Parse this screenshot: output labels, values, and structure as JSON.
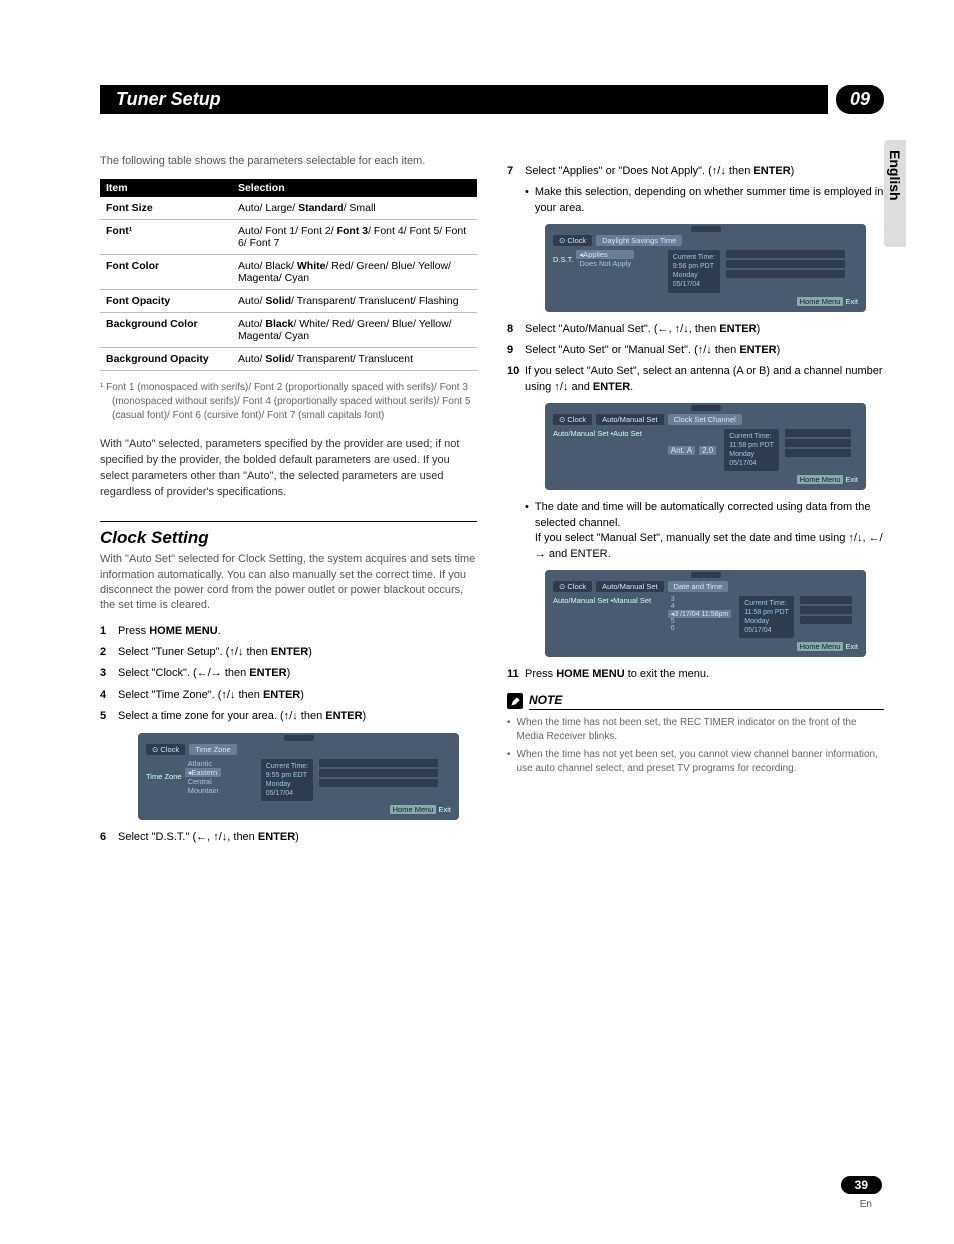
{
  "header": {
    "title": "Tuner Setup",
    "chapter": "09"
  },
  "side_tab": "English",
  "page_number": "39",
  "page_lang": "En",
  "left": {
    "intro": "The following table shows the parameters selectable for each item.",
    "table": {
      "headers": [
        "Item",
        "Selection"
      ],
      "rows": [
        {
          "item": "Font Size",
          "sel_pre": "Auto/ Large/ ",
          "sel_bold": "Standard",
          "sel_post": "/ Small"
        },
        {
          "item": "Font¹",
          "sel_pre": "Auto/ Font 1/ Font 2/ ",
          "sel_bold": "Font 3",
          "sel_post": "/ Font 4/ Font 5/ Font 6/ Font 7"
        },
        {
          "item": "Font Color",
          "sel_pre": "Auto/ Black/ ",
          "sel_bold": "White",
          "sel_post": "/ Red/ Green/ Blue/ Yellow/ Magenta/ Cyan"
        },
        {
          "item": "Font Opacity",
          "sel_pre": "Auto/ ",
          "sel_bold": "Solid",
          "sel_post": "/ Transparent/ Translucent/ Flashing"
        },
        {
          "item": "Background Color",
          "sel_pre": "Auto/ ",
          "sel_bold": "Black",
          "sel_post": "/ White/ Red/ Green/ Blue/ Yellow/ Magenta/ Cyan"
        },
        {
          "item": "Background Opacity",
          "sel_pre": "Auto/ ",
          "sel_bold": "Solid",
          "sel_post": "/ Transparent/ Translucent"
        }
      ]
    },
    "footnote": "¹  Font 1 (monospaced with serifs)/ Font 2 (proportionally spaced with serifs)/ Font 3 (monospaced without serifs)/ Font 4 (proportionally spaced without serifs)/ Font 5 (casual font)/ Font 6 (cursive font)/ Font 7 (small capitals font)",
    "para1": "With \"Auto\" selected, parameters specified by the provider are used; if not specified by the provider, the bolded default parameters are used. If you select parameters other than \"Auto\", the selected parameters are used regardless of provider's specifications.",
    "section2_title": "Clock Setting",
    "section2_intro": "With \"Auto Set\" selected for Clock Setting, the system acquires and sets time information automatically. You can also manually set the correct time. If you disconnect the power cord from the power outlet or power blackout occurs, the set time is cleared.",
    "steps": [
      {
        "n": "1",
        "pre": "Press ",
        "bold": "HOME MENU",
        "post": "."
      },
      {
        "n": "2",
        "pre": "Select \"Tuner Setup\". (↑/↓ then ",
        "bold": "ENTER",
        "post": ")"
      },
      {
        "n": "3",
        "pre": "Select \"Clock\". (←/→ then ",
        "bold": "ENTER",
        "post": ")"
      },
      {
        "n": "4",
        "pre": "Select \"Time Zone\". (↑/↓ then ",
        "bold": "ENTER",
        "post": ")"
      },
      {
        "n": "5",
        "pre": "Select a time zone for your area. (↑/↓ then ",
        "bold": "ENTER",
        "post": ")"
      }
    ],
    "osd1": {
      "tab1": "⊙ Clock",
      "tab2": "Time Zone",
      "label": "Time Zone",
      "opts": [
        "Atlantic",
        "◂Eastern",
        "Central",
        "Mountain"
      ],
      "info": [
        "Current Time:",
        "9:55 pm EDT",
        "Monday",
        "05/17/04"
      ],
      "footer_btn": "Home Menu",
      "footer_txt": "Exit"
    },
    "step6": {
      "n": "6",
      "pre": "Select \"D.S.T.\" (←, ↑/↓, then ",
      "bold": "ENTER",
      "post": ")"
    }
  },
  "right": {
    "step7": {
      "n": "7",
      "pre": "Select \"Applies\" or \"Does Not Apply\". (↑/↓ then ",
      "bold": "ENTER",
      "post": ")"
    },
    "bullet7": "Make this selection, depending on whether summer time is employed in your area.",
    "osd2": {
      "tab1": "⊙ Clock",
      "tab2": "Daylight Savings Time",
      "label": "D.S.T.",
      "opts": [
        "◂Applies",
        "Does Not Apply"
      ],
      "info": [
        "Current Time:",
        "9:56 pm PDT",
        "Monday",
        "05/17/04"
      ],
      "footer_btn": "Home Menu",
      "footer_txt": "Exit"
    },
    "step8": {
      "n": "8",
      "pre": "Select \"Auto/Manual Set\". (←, ↑/↓, then ",
      "bold": "ENTER",
      "post": ")"
    },
    "step9": {
      "n": "9",
      "pre": "Select \"Auto Set\" or \"Manual Set\". (↑/↓ then ",
      "bold": "ENTER",
      "post": ")"
    },
    "step10": {
      "n": "10",
      "pre": "If you select \"Auto Set\", select an antenna (A or B) and a channel number using ↑/↓ and ",
      "bold": "ENTER",
      "post": "."
    },
    "osd3": {
      "tab1": "⊙ Clock",
      "tab2": "Auto/Manual Set",
      "tab3": "Clock Set Channel",
      "label": "Auto/Manual Set  •Auto Set",
      "sel": "Ant. A",
      "sel2": "2.0",
      "info": [
        "Current Time:",
        "11:58 pm PDT",
        "Monday",
        "05/17/04"
      ],
      "footer_btn": "Home Menu",
      "footer_txt": "Exit"
    },
    "bullet10a": "The date and time will be automatically corrected using data from the selected channel.",
    "bullet10b": "If you select \"Manual Set\", manually set the date and time using ↑/↓, ←/→ and ENTER.",
    "osd4": {
      "tab1": "⊙ Clock",
      "tab2": "Auto/Manual Set",
      "tab3": "Date and Time",
      "label": "Auto/Manual Set  •Manual Set",
      "opts": [
        "3",
        "4",
        "◂3 /17/04  11:58pm",
        "5",
        "6"
      ],
      "info": [
        "Current Time:",
        "11:58 pm PDT",
        "Monday",
        "05/17/04"
      ],
      "footer_btn": "Home Menu",
      "footer_txt": "Exit"
    },
    "step11": {
      "n": "11",
      "pre": "Press ",
      "bold": "HOME MENU",
      "post": " to exit the menu."
    },
    "note_title": "NOTE",
    "notes": [
      "When the time has not been set, the REC TIMER indicator on the front of the Media Receiver blinks.",
      "When the time has not yet been set, you cannot view channel banner information, use auto channel select, and preset TV programs for recording."
    ]
  }
}
